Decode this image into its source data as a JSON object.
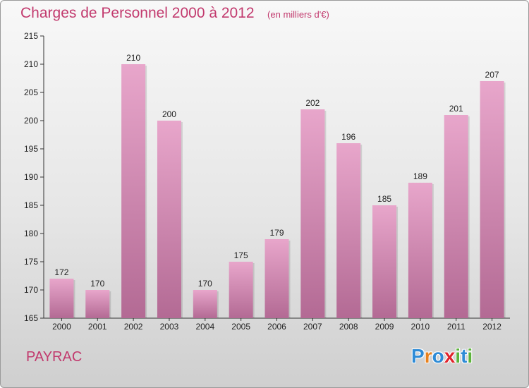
{
  "title": "Charges de Personnel 2000 à 2012",
  "subtitle": "(en milliers d'€)",
  "commune": "PAYRAC",
  "logo": {
    "text": "Proxiti",
    "letters": [
      {
        "char": "P",
        "color": "#2e8bd6"
      },
      {
        "char": "r",
        "color": "#e8821e"
      },
      {
        "char": "o",
        "color": "#2e8bd6"
      },
      {
        "char": "x",
        "color": "#e0242c"
      },
      {
        "char": "i",
        "color": "#5db33c"
      },
      {
        "char": "t",
        "color": "#2e8bd6"
      },
      {
        "char": "i",
        "color": "#5db33c"
      }
    ]
  },
  "colors": {
    "accent": "#c23a6e",
    "bar_top": "#e8a6cb",
    "bar_bottom": "#b36a94"
  },
  "chart_data": {
    "type": "bar",
    "categories": [
      "2000",
      "2001",
      "2002",
      "2003",
      "2004",
      "2005",
      "2006",
      "2007",
      "2008",
      "2009",
      "2010",
      "2011",
      "2012"
    ],
    "values": [
      172,
      170,
      210,
      200,
      170,
      175,
      179,
      202,
      196,
      185,
      189,
      201,
      207
    ],
    "ylim": [
      165,
      215
    ],
    "yticks": [
      165,
      170,
      175,
      180,
      185,
      190,
      195,
      200,
      205,
      210,
      215
    ],
    "title": "Charges de Personnel 2000 à 2012",
    "xlabel": "",
    "ylabel": "",
    "grid": false,
    "data_labels": true
  }
}
